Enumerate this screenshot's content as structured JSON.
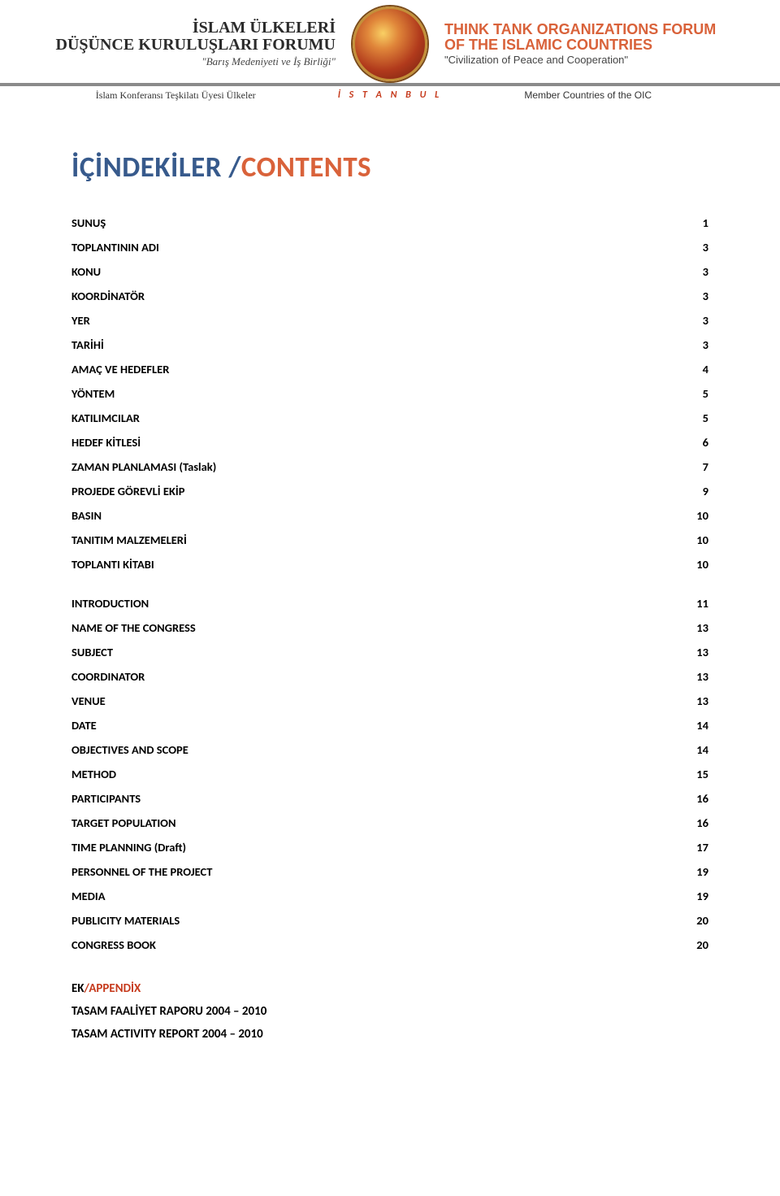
{
  "banner": {
    "left": {
      "line1": "İSLAM ÜLKELERİ",
      "line2": "DÜŞÜNCE KURULUŞLARI FORUMU",
      "tagline": "\"Barış Medeniyeti ve İş Birliği\"",
      "subhead": "İslam Konferansı Teşkilatı Üyesi Ülkeler"
    },
    "right": {
      "line1": "THINK TANK ORGANIZATIONS FORUM",
      "line2": "OF THE ISLAMIC COUNTRIES",
      "tagline": "\"Civilization of Peace and Cooperation\"",
      "subhead": "Member Countries of the OIC"
    },
    "center_label": "İ S T A N B U L"
  },
  "title": {
    "primary": "İÇİNDEKİLER",
    "separator": " /",
    "secondary": "CONTENTS"
  },
  "toc_group1": [
    {
      "label": "SUNUŞ",
      "page": "1"
    },
    {
      "label": "TOPLANTININ ADI",
      "page": "3"
    },
    {
      "label": "KONU",
      "page": "3"
    },
    {
      "label": "KOORDİNATÖR",
      "page": "3"
    },
    {
      "label": "YER",
      "page": "3"
    },
    {
      "label": "TARİHİ",
      "page": "3"
    },
    {
      "label": "AMAÇ VE HEDEFLER",
      "page": "4"
    },
    {
      "label": "YÖNTEM",
      "page": "5"
    },
    {
      "label": "KATILIMCILAR",
      "page": "5"
    },
    {
      "label": "HEDEF KİTLESİ",
      "page": "6"
    },
    {
      "label": "ZAMAN PLANLAMASI (Taslak)",
      "page": "7"
    },
    {
      "label": "PROJEDE GÖREVLİ EKİP",
      "page": "9"
    },
    {
      "label": "BASIN",
      "page": "10"
    },
    {
      "label": "TANITIM MALZEMELERİ",
      "page": "10"
    },
    {
      "label": "TOPLANTI KİTABI",
      "page": "10"
    }
  ],
  "toc_group2": [
    {
      "label": "INTRODUCTION",
      "page": "11"
    },
    {
      "label": "NAME OF THE CONGRESS",
      "page": "13"
    },
    {
      "label": "SUBJECT",
      "page": "13"
    },
    {
      "label": "COORDINATOR",
      "page": "13"
    },
    {
      "label": "VENUE",
      "page": "13"
    },
    {
      "label": "DATE",
      "page": "14"
    },
    {
      "label": "OBJECTIVES AND SCOPE",
      "page": "14"
    },
    {
      "label": "METHOD",
      "page": "15"
    },
    {
      "label": "PARTICIPANTS",
      "page": "16"
    },
    {
      "label": "TARGET POPULATION",
      "page": "16"
    },
    {
      "label": "TIME PLANNING (Draft)",
      "page": "17"
    },
    {
      "label": "PERSONNEL OF THE PROJECT",
      "page": "19"
    },
    {
      "label": "MEDIA",
      "page": "19"
    },
    {
      "label": "PUBLICITY MATERIALS",
      "page": "20"
    },
    {
      "label": "CONGRESS BOOK",
      "page": "20"
    }
  ],
  "appendix": {
    "title_primary": "EK",
    "title_slash": "/",
    "title_secondary": "APPENDİX",
    "line1": "TASAM FAALİYET RAPORU 2004 – 2010",
    "line2": "TASAM ACTIVITY REPORT 2004 – 2010"
  },
  "colors": {
    "title_primary": "#375a8c",
    "title_secondary": "#d9623a",
    "banner_org_tr": "#2b2b2b",
    "banner_org_en": "#d9623a",
    "istanbul": "#c63a1c",
    "rule": "#8a8a8a",
    "appendix_alt": "#c63a1c"
  }
}
